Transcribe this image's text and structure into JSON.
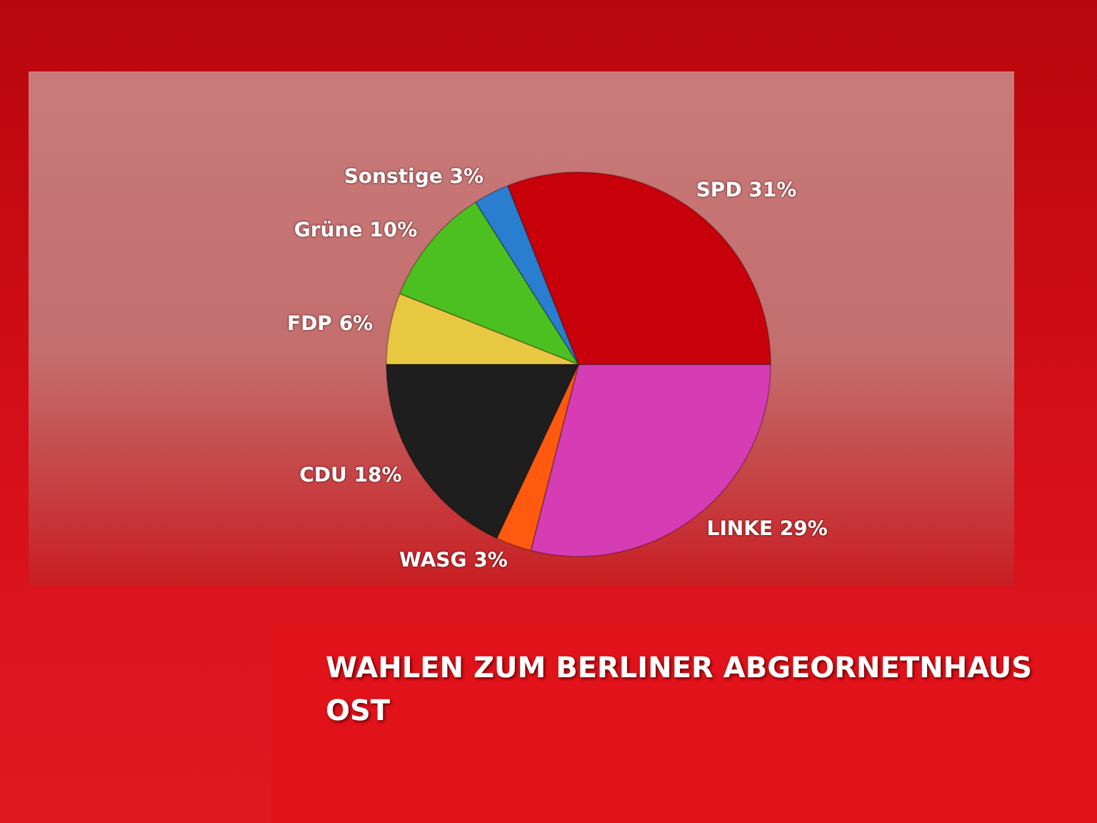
{
  "chart_data": {
    "type": "pie",
    "title": "WAHLEN ZUM BERLINER ABGEORNETNHAUS OST",
    "categories": [
      "LINKE",
      "WASG",
      "CDU",
      "FDP",
      "Grüne",
      "Sonstige",
      "SPD"
    ],
    "values": [
      29,
      3,
      18,
      6,
      10,
      3,
      31
    ],
    "value_labels": [
      "29%",
      "3%",
      "18%",
      "6%",
      "10%",
      "3%",
      "31%"
    ],
    "colors": [
      "#d63cb4",
      "#ff5a10",
      "#1e1e1e",
      "#e8c840",
      "#4cc020",
      "#2a7ed0",
      "#c8000a"
    ],
    "legend": false
  }
}
